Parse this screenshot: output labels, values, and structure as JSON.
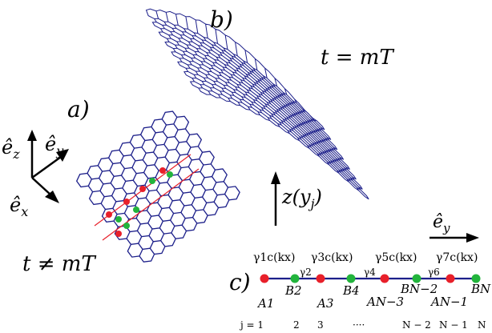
{
  "panel_labels": {
    "a": "a)",
    "b": "b)",
    "c": "c)"
  },
  "time_labels": {
    "stroboscopic": "t = mT",
    "generic": "t ≠ mT"
  },
  "axes": {
    "ez": "ê",
    "ez_sub": "z",
    "ey": "ê",
    "ey_sub": "y",
    "ex": "ê",
    "ex_sub": "x"
  },
  "displacement_label": "z(y",
  "displacement_sub": "j",
  "displacement_close": ")",
  "chain": {
    "direction": "ê",
    "direction_sub": "y",
    "hoppings": [
      "γ1c(kx)",
      "γ2",
      "γ3c(kx)",
      "γ4",
      "γ5c(kx)",
      "γ6",
      "γ7c(kx)"
    ],
    "sites_top": [
      "B2",
      "B4",
      "BN−2",
      "BN"
    ],
    "sites_bottom": [
      "A1",
      "A3",
      "AN−3",
      "AN−1"
    ],
    "index_row": [
      "j = 1",
      "2",
      "3",
      "····",
      "N − 2",
      "N − 1",
      "N"
    ],
    "colors": {
      "A": "#e8202a",
      "B": "#22b43c",
      "line": "#1c1f8a"
    }
  }
}
